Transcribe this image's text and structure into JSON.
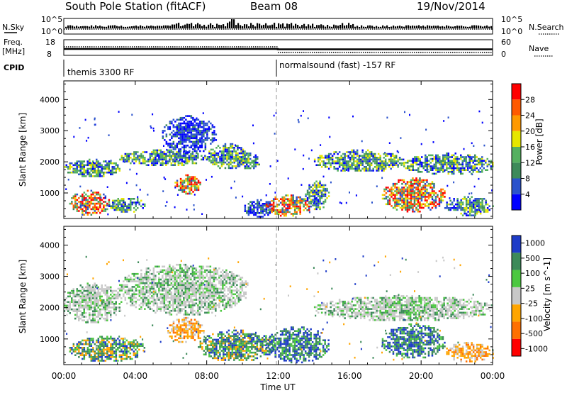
{
  "header": {
    "title": "South Pole Station (fitACF)",
    "beam": "Beam 08",
    "date": "19/Nov/2014"
  },
  "param_panels": {
    "left_nsky": "N.Sky",
    "nsky_ticks": [
      "10^5",
      "10^0"
    ],
    "right_nsearch": "N.Search",
    "nsearch_ticks": [
      "10^5",
      "10^0"
    ],
    "left_freq": "Freq.",
    "left_freq_unit": "[MHz]",
    "freq_ticks": [
      "18",
      "8"
    ],
    "right_nave": "Nave",
    "nave_ticks": [
      "60",
      "0"
    ],
    "cpid_label": "CPID",
    "cpid_segments": [
      {
        "label": "themis 3300 RF",
        "start_hour": 0,
        "end_hour": 11.9
      },
      {
        "label": "normalsound (fast) -157 RF",
        "start_hour": 11.9,
        "end_hour": 24
      }
    ]
  },
  "axes": {
    "xlabel": "Time UT",
    "xticks": [
      "00:00",
      "04:00",
      "08:00",
      "12:00",
      "16:00",
      "20:00",
      "00:00"
    ],
    "xlim_hours": [
      0,
      24
    ],
    "ylabel": "Slant Range [km]",
    "yticks": [
      "1000",
      "2000",
      "3000",
      "4000"
    ],
    "ylim_km": [
      180,
      4600
    ]
  },
  "power_scale": {
    "label": "Power [dB]",
    "ticks": [
      "4",
      "8",
      "12",
      "16",
      "20",
      "24",
      "28"
    ],
    "colors": [
      "#0000ff",
      "#2a52cc",
      "#3d8a5a",
      "#55b060",
      "#e6e600",
      "#ff9900",
      "#ff5a00",
      "#ff0000"
    ]
  },
  "velocity_scale": {
    "label": "Velocity [m s^-1]",
    "ticks": [
      "1000",
      "500",
      "100",
      "25",
      "-25",
      "-100",
      "-500",
      "-1000"
    ],
    "colors": [
      "#1e3cc8",
      "#3d8a5a",
      "#4cc840",
      "#c8c8c8",
      "#ffa500",
      "#ff7000",
      "#ff0000"
    ]
  },
  "chart_data": {
    "type": "heatmap",
    "title": "South Pole Station (fitACF)",
    "xlabel": "Time UT",
    "ylabel": "Slant Range [km]",
    "xlim": [
      0,
      24
    ],
    "ylim": [
      180,
      4600
    ],
    "power_echo_regions": [
      {
        "t0": 0.0,
        "t1": 3.2,
        "r0": 1550,
        "r1": 2100,
        "level": "medium"
      },
      {
        "t0": 3.0,
        "t1": 8.0,
        "r0": 1900,
        "r1": 2400,
        "level": "medium"
      },
      {
        "t0": 5.5,
        "t1": 8.5,
        "r0": 2300,
        "r1": 3500,
        "level": "low"
      },
      {
        "t0": 8.0,
        "t1": 10.3,
        "r0": 1800,
        "r1": 2600,
        "level": "medium"
      },
      {
        "t0": 6.2,
        "t1": 7.6,
        "r0": 1000,
        "r1": 1600,
        "level": "high"
      },
      {
        "t0": 0.3,
        "t1": 2.5,
        "r0": 300,
        "r1": 1100,
        "level": "high"
      },
      {
        "t0": 2.5,
        "t1": 4.5,
        "r0": 400,
        "r1": 900,
        "level": "medium"
      },
      {
        "t0": 9.5,
        "t1": 11.0,
        "r0": 1800,
        "r1": 2300,
        "level": "medium"
      },
      {
        "t0": 10.0,
        "t1": 11.8,
        "r0": 250,
        "r1": 800,
        "level": "low"
      },
      {
        "t0": 11.3,
        "t1": 13.8,
        "r0": 280,
        "r1": 950,
        "level": "high"
      },
      {
        "t0": 13.5,
        "t1": 14.8,
        "r0": 500,
        "r1": 1400,
        "level": "medium"
      },
      {
        "t0": 14.0,
        "t1": 19.0,
        "r0": 1700,
        "r1": 2400,
        "level": "medium"
      },
      {
        "t0": 19.0,
        "t1": 24.0,
        "r0": 1600,
        "r1": 2300,
        "level": "medium"
      },
      {
        "t0": 17.8,
        "t1": 21.3,
        "r0": 400,
        "r1": 1500,
        "level": "high"
      },
      {
        "t0": 21.3,
        "t1": 24.0,
        "r0": 300,
        "r1": 900,
        "level": "medium"
      }
    ],
    "velocity_echo_regions": [
      {
        "t0": 0.0,
        "t1": 3.2,
        "r0": 1550,
        "r1": 2800,
        "level": "near-zero"
      },
      {
        "t0": 3.0,
        "t1": 10.3,
        "r0": 1800,
        "r1": 3400,
        "level": "near-zero"
      },
      {
        "t0": 5.8,
        "t1": 7.8,
        "r0": 900,
        "r1": 1700,
        "level": "negative"
      },
      {
        "t0": 0.3,
        "t1": 4.5,
        "r0": 300,
        "r1": 1100,
        "level": "positive"
      },
      {
        "t0": 7.5,
        "t1": 11.8,
        "r0": 300,
        "r1": 1300,
        "level": "positive"
      },
      {
        "t0": 11.3,
        "t1": 14.8,
        "r0": 280,
        "r1": 1400,
        "level": "positive-high"
      },
      {
        "t0": 14.0,
        "t1": 24.0,
        "r0": 1600,
        "r1": 2400,
        "level": "near-zero"
      },
      {
        "t0": 17.8,
        "t1": 21.3,
        "r0": 400,
        "r1": 1500,
        "level": "positive-high"
      },
      {
        "t0": 21.3,
        "t1": 24.0,
        "r0": 300,
        "r1": 900,
        "level": "negative"
      }
    ],
    "grid": false
  }
}
